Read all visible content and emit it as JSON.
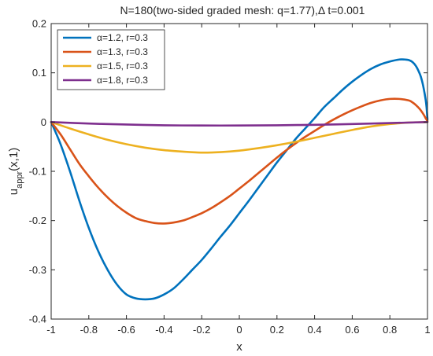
{
  "chart_data": {
    "type": "line",
    "title": "N=180(two-sided graded mesh: q=1.77),Δ t=0.001",
    "xlabel": "x",
    "ylabel_main": "u",
    "ylabel_sub": "appr",
    "ylabel_tail": "(x,1)",
    "xlim": [
      -1,
      1
    ],
    "ylim": [
      -0.4,
      0.2
    ],
    "xticks": [
      -1,
      -0.8,
      -0.6,
      -0.4,
      -0.2,
      0,
      0.2,
      0.4,
      0.6,
      0.8,
      1
    ],
    "xtick_labels": [
      "-1",
      "-0.8",
      "-0.6",
      "-0.4",
      "-0.2",
      "0",
      "0.2",
      "0.4",
      "0.6",
      "0.8",
      "1"
    ],
    "yticks": [
      -0.4,
      -0.3,
      -0.2,
      -0.1,
      0,
      0.1,
      0.2
    ],
    "ytick_labels": [
      "-0.4",
      "-0.3",
      "-0.2",
      "-0.1",
      "0",
      "0.1",
      "0.2"
    ],
    "grid": false,
    "legend_position": "top-left",
    "series": [
      {
        "name": "α=1.2, r=0.3",
        "color": "#0072BD",
        "x": [
          -1,
          -0.95,
          -0.9,
          -0.85,
          -0.8,
          -0.75,
          -0.7,
          -0.65,
          -0.6,
          -0.55,
          -0.5,
          -0.45,
          -0.4,
          -0.35,
          -0.3,
          -0.25,
          -0.2,
          -0.15,
          -0.1,
          -0.05,
          0,
          0.05,
          0.1,
          0.15,
          0.2,
          0.25,
          0.3,
          0.35,
          0.4,
          0.45,
          0.5,
          0.55,
          0.6,
          0.65,
          0.7,
          0.75,
          0.8,
          0.85,
          0.88,
          0.9,
          0.92,
          0.94,
          0.96,
          0.97,
          0.98,
          0.99,
          0.995,
          1
        ],
        "y": [
          0,
          -0.045,
          -0.1,
          -0.16,
          -0.215,
          -0.262,
          -0.3,
          -0.33,
          -0.35,
          -0.358,
          -0.36,
          -0.358,
          -0.35,
          -0.338,
          -0.32,
          -0.3,
          -0.28,
          -0.257,
          -0.233,
          -0.21,
          -0.185,
          -0.16,
          -0.134,
          -0.108,
          -0.082,
          -0.058,
          -0.034,
          -0.013,
          0.008,
          0.03,
          0.048,
          0.066,
          0.082,
          0.096,
          0.108,
          0.117,
          0.123,
          0.127,
          0.127,
          0.126,
          0.122,
          0.113,
          0.097,
          0.085,
          0.068,
          0.046,
          0.03,
          0.005
        ]
      },
      {
        "name": "α=1.3, r=0.3",
        "color": "#D95319",
        "x": [
          -1,
          -0.95,
          -0.9,
          -0.85,
          -0.8,
          -0.75,
          -0.7,
          -0.65,
          -0.6,
          -0.55,
          -0.5,
          -0.45,
          -0.4,
          -0.35,
          -0.3,
          -0.25,
          -0.2,
          -0.15,
          -0.1,
          -0.05,
          0,
          0.05,
          0.1,
          0.15,
          0.2,
          0.25,
          0.3,
          0.35,
          0.4,
          0.45,
          0.5,
          0.55,
          0.6,
          0.65,
          0.7,
          0.75,
          0.8,
          0.85,
          0.9,
          0.92,
          0.94,
          0.96,
          0.98,
          0.99,
          1
        ],
        "y": [
          0,
          -0.025,
          -0.055,
          -0.085,
          -0.11,
          -0.133,
          -0.153,
          -0.17,
          -0.184,
          -0.195,
          -0.201,
          -0.205,
          -0.206,
          -0.204,
          -0.2,
          -0.193,
          -0.185,
          -0.175,
          -0.163,
          -0.15,
          -0.135,
          -0.12,
          -0.104,
          -0.088,
          -0.072,
          -0.057,
          -0.043,
          -0.03,
          -0.018,
          -0.006,
          0.005,
          0.015,
          0.024,
          0.032,
          0.039,
          0.044,
          0.047,
          0.047,
          0.044,
          0.04,
          0.034,
          0.026,
          0.015,
          0.008,
          0.002
        ]
      },
      {
        "name": "α=1.5, r=0.3",
        "color": "#EDB120",
        "x": [
          -1,
          -0.9,
          -0.8,
          -0.7,
          -0.6,
          -0.5,
          -0.4,
          -0.3,
          -0.2,
          -0.1,
          0,
          0.1,
          0.2,
          0.3,
          0.4,
          0.5,
          0.6,
          0.7,
          0.8,
          0.9,
          0.95,
          1
        ],
        "y": [
          0,
          -0.013,
          -0.025,
          -0.036,
          -0.045,
          -0.052,
          -0.057,
          -0.06,
          -0.062,
          -0.061,
          -0.058,
          -0.053,
          -0.047,
          -0.04,
          -0.032,
          -0.024,
          -0.016,
          -0.009,
          -0.004,
          -0.001,
          -0.0005,
          0
        ]
      },
      {
        "name": "α=1.8, r=0.3",
        "color": "#7E2F8E",
        "x": [
          -1,
          -0.8,
          -0.6,
          -0.4,
          -0.2,
          0,
          0.2,
          0.4,
          0.6,
          0.8,
          1
        ],
        "y": [
          0,
          -0.003,
          -0.005,
          -0.0065,
          -0.007,
          -0.007,
          -0.0065,
          -0.0055,
          -0.004,
          -0.002,
          0
        ]
      }
    ]
  }
}
